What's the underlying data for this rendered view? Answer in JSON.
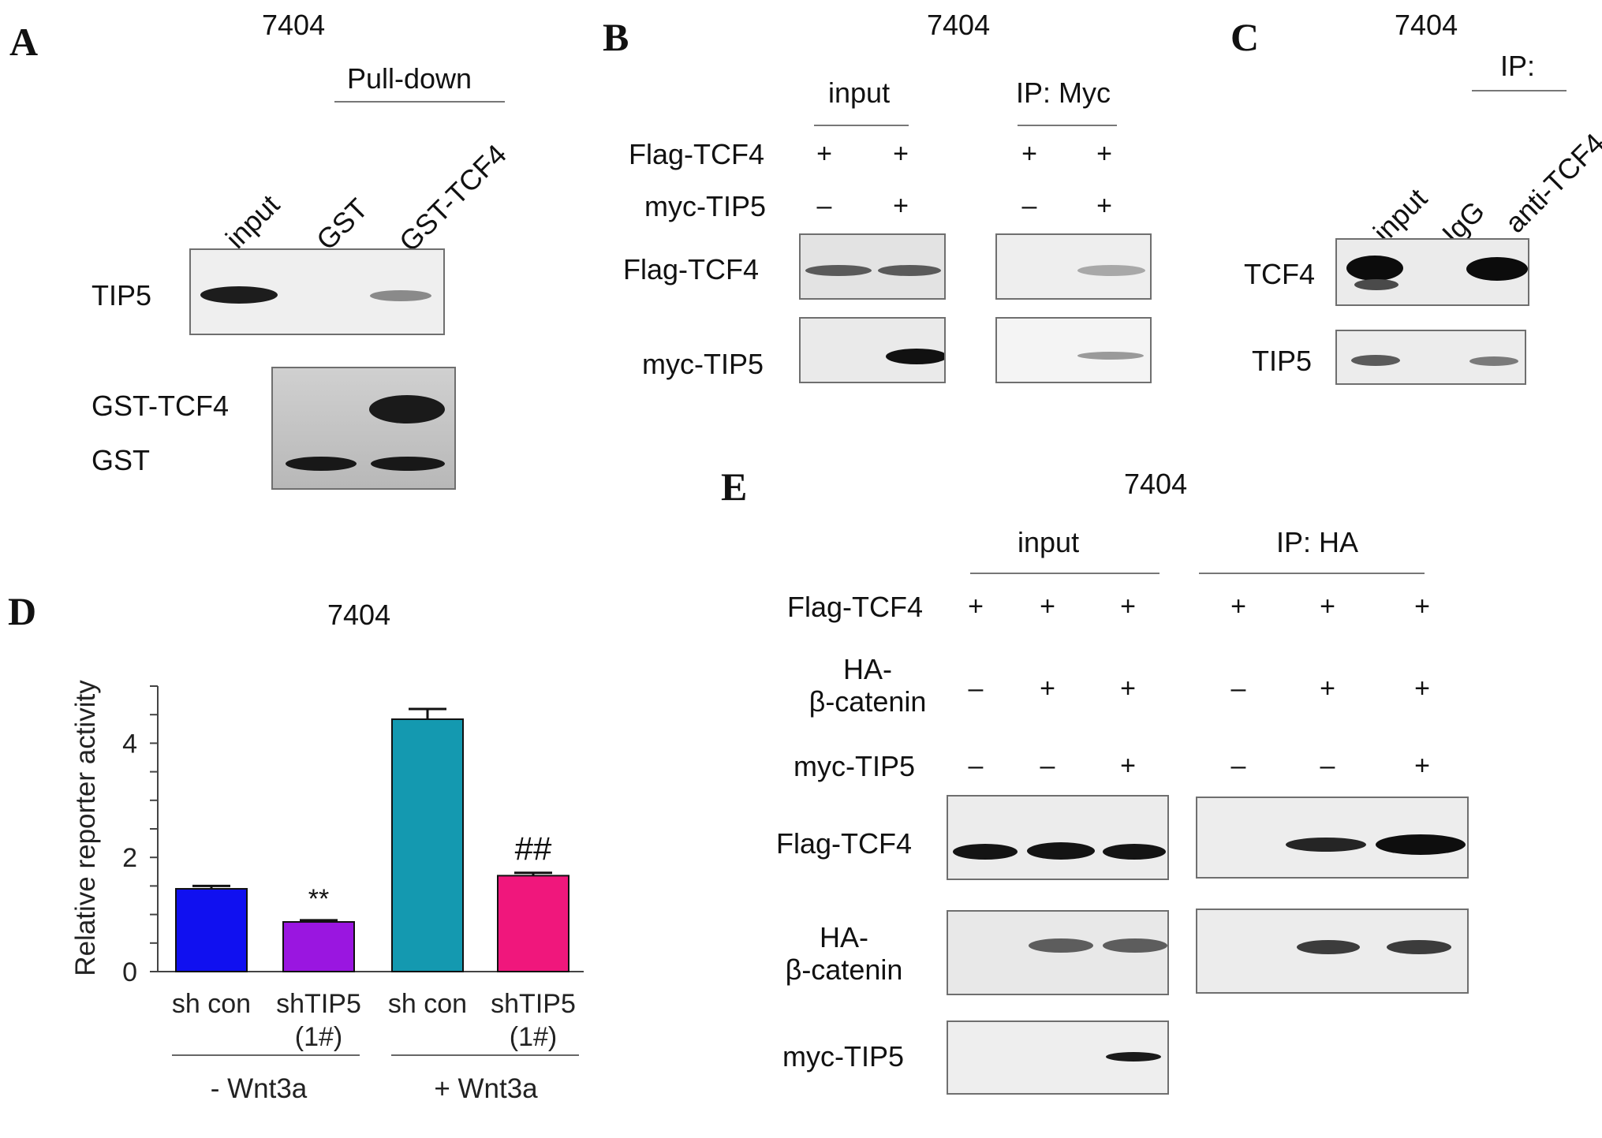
{
  "panels": {
    "A": {
      "letter": "A",
      "cell_line": "7404",
      "group_label": "Pull-down",
      "lanes": [
        "input",
        "GST",
        "GST-TCF4"
      ],
      "blot_labels": [
        "TIP5",
        "GST-TCF4",
        "GST"
      ]
    },
    "B": {
      "letter": "B",
      "cell_line": "7404",
      "groups": [
        "input",
        "IP: Myc"
      ],
      "rows": [
        {
          "label": "Flag-TCF4",
          "signs": [
            "+",
            "+",
            "+",
            "+"
          ]
        },
        {
          "label": "myc-TIP5",
          "signs": [
            "–",
            "+",
            "–",
            "+"
          ]
        }
      ],
      "blot_labels": [
        "Flag-TCF4",
        "myc-TIP5"
      ]
    },
    "C": {
      "letter": "C",
      "cell_line": "7404",
      "group_label": "IP:",
      "lanes": [
        "input",
        "IgG",
        "anti-TCF4"
      ],
      "blot_labels": [
        "TCF4",
        "TIP5"
      ]
    },
    "D": {
      "letter": "D",
      "cell_line": "7404"
    },
    "E": {
      "letter": "E",
      "cell_line": "7404",
      "groups": [
        "input",
        "IP: HA"
      ],
      "rows": [
        {
          "label": "Flag-TCF4",
          "signs": [
            "+",
            "+",
            "+",
            "+",
            "+",
            "+"
          ]
        },
        {
          "label_line1": "HA-",
          "label_line2": "β-catenin",
          "signs": [
            "–",
            "+",
            "+",
            "–",
            "+",
            "+"
          ]
        },
        {
          "label": "myc-TIP5",
          "signs": [
            "–",
            "–",
            "+",
            "–",
            "–",
            "+"
          ]
        }
      ],
      "blot_labels": [
        {
          "line1": "Flag-TCF4"
        },
        {
          "line1": "HA-",
          "line2": "β-catenin"
        },
        {
          "line1": "myc-TIP5"
        }
      ]
    }
  },
  "chart_data": {
    "type": "bar",
    "title": "7404",
    "ylabel": "Relative reporter activity",
    "ylim": [
      0,
      5
    ],
    "yticks": [
      "0",
      "2",
      "4"
    ],
    "categories": [
      {
        "line1": "sh con",
        "line2": ""
      },
      {
        "line1": "shTIP5",
        "line2": "(1#)"
      },
      {
        "line1": "sh con",
        "line2": ""
      },
      {
        "line1": "shTIP5",
        "line2": "(1#)"
      }
    ],
    "values": [
      1.45,
      0.87,
      4.42,
      1.68
    ],
    "errors": [
      0.05,
      0.03,
      0.18,
      0.05
    ],
    "colors": [
      "#1010f0",
      "#9a16e0",
      "#1499b0",
      "#f0177c"
    ],
    "annotations": [
      "",
      "**",
      "",
      "##"
    ],
    "groups": [
      "- Wnt3a",
      "+ Wnt3a"
    ]
  }
}
